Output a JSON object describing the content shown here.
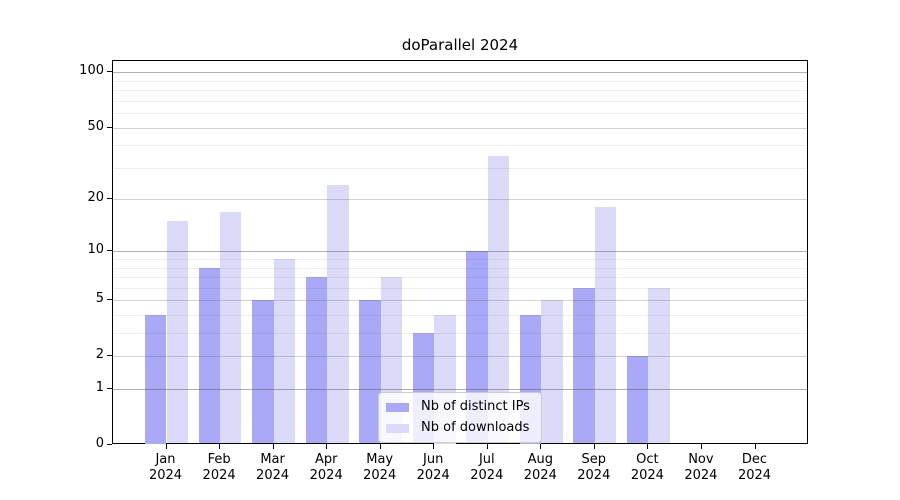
{
  "chart_data": {
    "type": "bar",
    "title": "doParallel 2024",
    "categories": [
      "Jan",
      "Feb",
      "Mar",
      "Apr",
      "May",
      "Jun",
      "Jul",
      "Aug",
      "Sep",
      "Oct",
      "Nov",
      "Dec"
    ],
    "year": "2024",
    "series": [
      {
        "name": "Nb of distinct IPs",
        "color": "#a9a9f8",
        "values": [
          4,
          8,
          5,
          7,
          5,
          3,
          10,
          4,
          6,
          2,
          0,
          0
        ]
      },
      {
        "name": "Nb of downloads",
        "color": "#dbdbf9",
        "values": [
          15,
          17,
          9,
          24,
          7,
          4,
          35,
          5,
          18,
          6,
          0,
          0
        ]
      }
    ],
    "yscale": "log1p",
    "ylim": [
      0,
      116
    ],
    "y_ticks_labeled": [
      0,
      1,
      2,
      5,
      10,
      20,
      50,
      100
    ],
    "y_gridlines_major": [
      1,
      10,
      100
    ],
    "y_gridlines_labeled": [
      2,
      5,
      20,
      50
    ],
    "y_gridlines_minor": [
      3,
      4,
      6,
      7,
      8,
      9,
      30,
      40,
      60,
      70,
      80,
      90
    ],
    "grid": true,
    "legend_position": "lower center",
    "grid_colors": {
      "major": "rgba(80,80,80,0.45)",
      "labeled": "rgba(80,80,80,0.25)",
      "minor": "rgba(80,80,80,0.10)"
    }
  }
}
